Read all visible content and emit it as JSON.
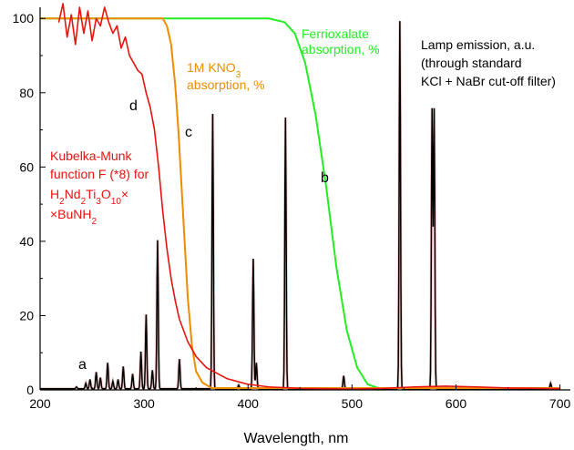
{
  "chart_data": {
    "type": "line",
    "xlabel": "Wavelength, nm",
    "ylabel": "",
    "xlim": [
      200,
      710
    ],
    "ylim": [
      0,
      103
    ],
    "xticks": [
      200,
      300,
      400,
      500,
      600,
      700
    ],
    "yticks": [
      0,
      20,
      40,
      60,
      80,
      100
    ],
    "grid": false,
    "colors": {
      "lamp": "#000000",
      "ferrioxalate": "#22ee22",
      "kno3": "#f08c00",
      "kubelka": "#e8130e"
    },
    "annotations": {
      "ferrioxalate": [
        "Ferrioxalate",
        "absorption, %"
      ],
      "lamp": [
        "Lamp emission, a.u.",
        "(through standard",
        "KCl + NaBr cut-off filter)"
      ],
      "kno3_line1": "1M KNO",
      "kno3_sub": "3",
      "kno3_line2": "absorption, %",
      "kubelka_line1": "Kubelka-Munk",
      "kubelka_line2": "function F (*8) for",
      "formula": [
        {
          "t": "H",
          "sub": false
        },
        {
          "t": "2",
          "sub": true
        },
        {
          "t": "Nd",
          "sub": false
        },
        {
          "t": "2",
          "sub": true
        },
        {
          "t": "Ti",
          "sub": false
        },
        {
          "t": "3",
          "sub": true
        },
        {
          "t": "O",
          "sub": false
        },
        {
          "t": "10",
          "sub": true
        },
        {
          "t": "×",
          "sub": false
        }
      ],
      "formula2": [
        {
          "t": "×BuNH",
          "sub": false
        },
        {
          "t": "2",
          "sub": true
        }
      ],
      "letter_a": "a",
      "letter_b": "b",
      "letter_c": "c",
      "letter_d": "d"
    },
    "series": [
      {
        "key": "ferrioxalate",
        "x": [
          200,
          420,
          435,
          445,
          455,
          465,
          475,
          485,
          495,
          505,
          515,
          525,
          700
        ],
        "y": [
          100,
          100,
          99,
          96,
          88,
          74,
          55,
          33,
          16,
          6,
          1.5,
          0.5,
          0.5
        ]
      },
      {
        "key": "kno3",
        "x": [
          200,
          318,
          322,
          326,
          330,
          333,
          336,
          339,
          342,
          346,
          350,
          356,
          365,
          700
        ],
        "y": [
          100,
          100,
          98,
          93,
          82,
          70,
          55,
          40,
          25,
          12,
          5,
          2,
          0.5,
          0.5
        ]
      },
      {
        "key": "kubelka",
        "x": [
          218,
          222,
          226,
          230,
          234,
          238,
          242,
          246,
          250,
          254,
          258,
          262,
          266,
          270,
          274,
          278,
          282,
          286,
          290,
          294,
          298,
          302,
          306,
          310,
          314,
          318,
          322,
          326,
          330,
          334,
          338,
          342,
          346,
          350,
          355,
          360,
          370,
          380,
          400,
          420,
          450,
          480,
          500,
          530,
          560,
          590,
          620,
          650,
          680,
          700
        ],
        "y": [
          99,
          104,
          95,
          101,
          93,
          103,
          96,
          102,
          94,
          100,
          98,
          103,
          99,
          96,
          98,
          92,
          95,
          90,
          88,
          86,
          85,
          80,
          76,
          70,
          60,
          48,
          38,
          30,
          24,
          19,
          16,
          13,
          11,
          9,
          7.5,
          6,
          4.5,
          3,
          1.5,
          0.8,
          0.4,
          0.3,
          0.2,
          0.4,
          0.8,
          1,
          0.8,
          0.5,
          0.4,
          0.3
        ]
      }
    ],
    "lamp_peaks": [
      {
        "x": 235,
        "h": 0.5
      },
      {
        "x": 244,
        "h": 1.5
      },
      {
        "x": 248,
        "h": 2.5
      },
      {
        "x": 254,
        "h": 4.5
      },
      {
        "x": 258,
        "h": 3
      },
      {
        "x": 265,
        "h": 7
      },
      {
        "x": 270,
        "h": 2
      },
      {
        "x": 275,
        "h": 2.5
      },
      {
        "x": 280,
        "h": 6
      },
      {
        "x": 289,
        "h": 4
      },
      {
        "x": 297,
        "h": 10
      },
      {
        "x": 302,
        "h": 20
      },
      {
        "x": 308,
        "h": 5
      },
      {
        "x": 313,
        "h": 40
      },
      {
        "x": 334,
        "h": 8
      },
      {
        "x": 366,
        "h": 74
      },
      {
        "x": 391,
        "h": 1
      },
      {
        "x": 405,
        "h": 35
      },
      {
        "x": 408,
        "h": 7
      },
      {
        "x": 436,
        "h": 73
      },
      {
        "x": 492,
        "h": 3.5
      },
      {
        "x": 546,
        "h": 99
      },
      {
        "x": 577,
        "h": 75
      },
      {
        "x": 579,
        "h": 75
      },
      {
        "x": 691,
        "h": 1.5
      }
    ]
  }
}
